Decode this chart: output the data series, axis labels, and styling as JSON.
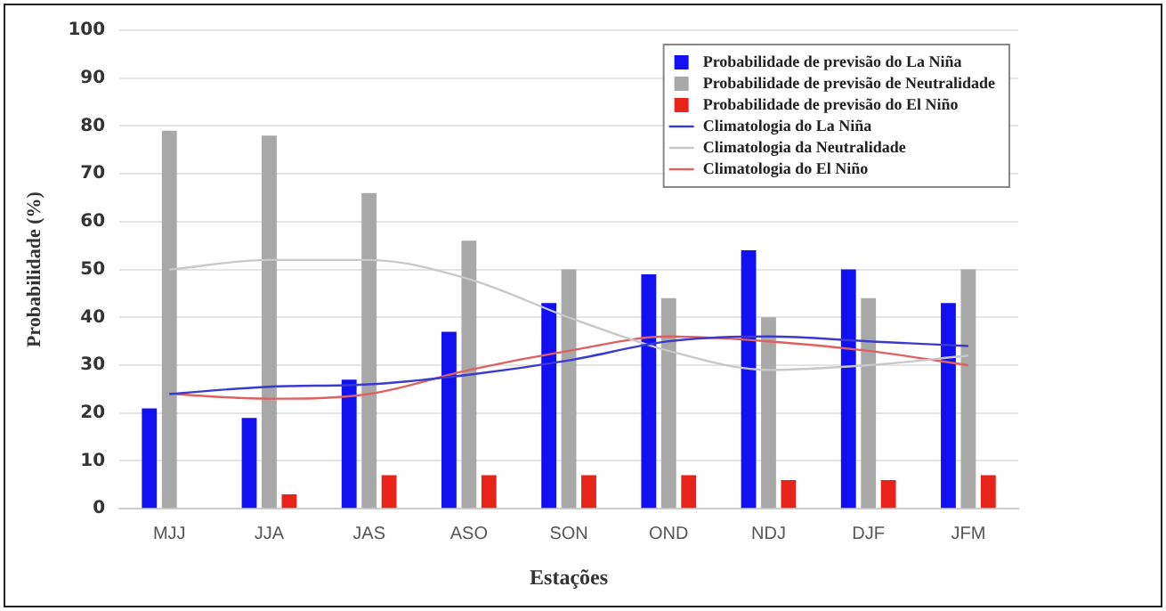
{
  "chart_data": {
    "type": "bar",
    "xlabel": "Estações",
    "ylabel": "Probabilidade (%)",
    "categories": [
      "MJJ",
      "JJA",
      "JAS",
      "ASO",
      "SON",
      "OND",
      "NDJ",
      "DJF",
      "JFM"
    ],
    "series": [
      {
        "name": "Probabilidade de previsão do La Niña",
        "color": "#1010f0",
        "values": [
          21,
          19,
          27,
          37,
          43,
          49,
          54,
          50,
          43
        ]
      },
      {
        "name": "Probabilidade de previsão de Neutralidade",
        "color": "#a8a8a8",
        "values": [
          79,
          78,
          66,
          56,
          50,
          44,
          40,
          44,
          50
        ]
      },
      {
        "name": "Probabilidade de previsão do El Niño",
        "color": "#e8231a",
        "values": [
          0,
          3,
          7,
          7,
          7,
          7,
          6,
          6,
          7
        ]
      },
      {
        "name": "Climatologia do La Niña",
        "type": "line",
        "color": "#3a3ad0",
        "values": [
          24,
          25.5,
          26,
          28,
          31,
          35,
          36,
          35,
          34
        ]
      },
      {
        "name": "Climatologia da Neutralidade",
        "type": "line",
        "color": "#c8c8c8",
        "values": [
          50,
          52,
          52,
          48,
          40,
          33,
          29,
          30,
          32
        ]
      },
      {
        "name": "Climatologia do El Niño",
        "type": "line",
        "color": "#e06060",
        "values": [
          24,
          23,
          24,
          29,
          33,
          36,
          35,
          33,
          30
        ]
      }
    ],
    "ylim": [
      0,
      100
    ],
    "yticks": [
      0,
      10,
      20,
      30,
      40,
      50,
      60,
      70,
      80,
      90,
      100
    ],
    "grid": "y",
    "legend": "top right",
    "marker": "none"
  }
}
